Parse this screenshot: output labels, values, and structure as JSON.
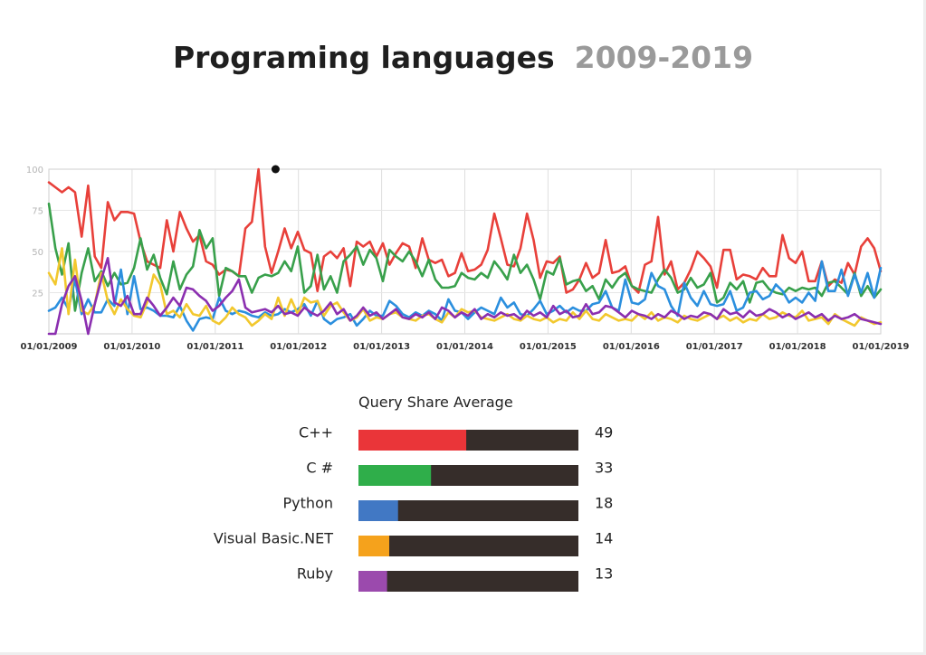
{
  "title": "Programing languages",
  "subtitle": "2009-2019",
  "chart_data": [
    {
      "type": "line",
      "title": "Programing languages",
      "xlabel": "",
      "ylabel": "",
      "ylim": [
        0,
        100
      ],
      "yticks": [
        "100",
        "75",
        "50",
        "25"
      ],
      "xticks": [
        "01/01/2009",
        "01/01/2010",
        "01/01/2011",
        "01/01/2012",
        "01/01/2013",
        "01/01/2014",
        "01/01/2015",
        "01/01/2016",
        "01/01/2017",
        "01/01/2018",
        "01/01/2019"
      ],
      "x_start": "01/01/2009",
      "x_end": "01/01/2019",
      "grid": true,
      "legend": "none",
      "peak_marker": {
        "x": "2011-09",
        "y": 100
      },
      "series": [
        {
          "key": "cpp",
          "color": "#e8403a",
          "values": [
            92,
            89,
            86,
            89,
            86,
            59,
            90,
            47,
            40,
            80,
            69,
            74,
            74,
            73,
            56,
            44,
            42,
            40,
            69,
            50,
            74,
            64,
            56,
            60,
            44,
            42,
            36,
            39,
            38,
            35,
            64,
            68,
            100,
            53,
            37,
            50,
            64,
            52,
            62,
            51,
            49,
            26,
            47,
            50,
            46,
            52,
            29,
            56,
            53,
            56,
            47,
            55,
            42,
            49,
            55,
            53,
            40,
            58,
            45,
            43,
            45,
            35,
            37,
            49,
            38,
            39,
            42,
            51,
            73,
            58,
            42,
            41,
            52,
            73,
            57,
            34,
            44,
            43,
            47,
            25,
            27,
            33,
            43,
            34,
            37,
            57,
            37,
            38,
            41,
            29,
            25,
            42,
            44,
            71,
            36,
            44,
            27,
            31,
            39,
            50,
            46,
            41,
            28,
            51,
            51,
            33,
            36,
            35,
            33,
            40,
            35,
            35,
            60,
            46,
            43,
            50,
            32,
            32,
            44,
            29,
            33,
            31,
            43,
            36,
            53,
            58,
            52,
            38
          ]
        },
        {
          "key": "csharp",
          "color": "#38a04b",
          "values": [
            79,
            52,
            36,
            55,
            14,
            37,
            52,
            32,
            38,
            29,
            37,
            30,
            31,
            40,
            58,
            39,
            48,
            34,
            24,
            44,
            27,
            36,
            41,
            63,
            52,
            58,
            23,
            40,
            38,
            35,
            35,
            25,
            34,
            36,
            35,
            37,
            44,
            38,
            53,
            25,
            29,
            48,
            27,
            35,
            25,
            44,
            48,
            53,
            42,
            51,
            46,
            32,
            51,
            47,
            44,
            50,
            44,
            35,
            45,
            33,
            28,
            28,
            29,
            37,
            34,
            33,
            37,
            34,
            44,
            39,
            33,
            48,
            37,
            42,
            33,
            21,
            38,
            36,
            46,
            30,
            32,
            33,
            26,
            29,
            21,
            33,
            28,
            34,
            37,
            29,
            27,
            26,
            25,
            33,
            39,
            34,
            25,
            27,
            34,
            28,
            30,
            37,
            19,
            22,
            31,
            27,
            32,
            19,
            31,
            32,
            27,
            25,
            24,
            28,
            26,
            28,
            27,
            28,
            23,
            31,
            32,
            28,
            24,
            37,
            23,
            29,
            22,
            27
          ]
        },
        {
          "key": "python",
          "color": "#2b8fde",
          "values": [
            14,
            16,
            22,
            15,
            33,
            12,
            21,
            13,
            13,
            21,
            17,
            39,
            12,
            35,
            15,
            16,
            14,
            11,
            11,
            10,
            17,
            8,
            2,
            9,
            10,
            9,
            22,
            14,
            12,
            14,
            13,
            11,
            10,
            13,
            11,
            12,
            15,
            13,
            15,
            18,
            11,
            20,
            9,
            6,
            9,
            10,
            12,
            5,
            9,
            14,
            11,
            11,
            20,
            17,
            12,
            10,
            13,
            11,
            14,
            12,
            8,
            21,
            14,
            13,
            9,
            13,
            16,
            14,
            12,
            22,
            16,
            19,
            12,
            11,
            15,
            20,
            12,
            14,
            17,
            13,
            16,
            14,
            14,
            18,
            19,
            26,
            16,
            14,
            33,
            19,
            18,
            21,
            37,
            29,
            27,
            17,
            11,
            31,
            22,
            17,
            26,
            18,
            17,
            18,
            26,
            14,
            16,
            25,
            26,
            21,
            23,
            30,
            26,
            19,
            22,
            19,
            25,
            20,
            44,
            26,
            26,
            39,
            23,
            36,
            25,
            37,
            22,
            40
          ]
        },
        {
          "key": "vbnet",
          "color": "#f2c82e",
          "values": [
            37,
            30,
            52,
            12,
            45,
            14,
            12,
            18,
            37,
            20,
            12,
            21,
            15,
            11,
            10,
            19,
            36,
            30,
            12,
            14,
            10,
            18,
            12,
            11,
            17,
            8,
            6,
            10,
            16,
            12,
            10,
            5,
            8,
            12,
            9,
            22,
            11,
            21,
            12,
            22,
            19,
            20,
            11,
            17,
            19,
            13,
            8,
            10,
            15,
            8,
            10,
            9,
            12,
            13,
            10,
            9,
            8,
            11,
            12,
            9,
            7,
            13,
            10,
            15,
            13,
            14,
            10,
            9,
            8,
            10,
            12,
            9,
            8,
            11,
            9,
            8,
            10,
            7,
            9,
            8,
            13,
            9,
            14,
            9,
            8,
            12,
            10,
            8,
            9,
            8,
            12,
            9,
            13,
            8,
            10,
            9,
            7,
            11,
            9,
            8,
            10,
            12,
            9,
            11,
            8,
            10,
            7,
            9,
            8,
            12,
            9,
            10,
            13,
            11,
            10,
            14,
            8,
            9,
            10,
            6,
            12,
            9,
            7,
            5,
            10,
            8,
            6,
            7
          ]
        },
        {
          "key": "ruby",
          "color": "#8b2fb0",
          "values": [
            0,
            0,
            18,
            29,
            35,
            20,
            0,
            18,
            33,
            46,
            19,
            17,
            23,
            12,
            12,
            22,
            17,
            11,
            16,
            22,
            17,
            28,
            27,
            23,
            20,
            14,
            17,
            22,
            26,
            33,
            16,
            13,
            14,
            15,
            13,
            17,
            12,
            13,
            11,
            16,
            13,
            11,
            14,
            19,
            12,
            15,
            8,
            11,
            16,
            11,
            13,
            9,
            12,
            15,
            10,
            9,
            12,
            10,
            13,
            9,
            16,
            14,
            10,
            13,
            11,
            15,
            9,
            12,
            10,
            13,
            11,
            12,
            9,
            14,
            11,
            13,
            10,
            17,
            12,
            14,
            10,
            11,
            18,
            12,
            13,
            17,
            16,
            13,
            10,
            14,
            12,
            11,
            9,
            12,
            10,
            14,
            12,
            9,
            11,
            10,
            13,
            12,
            9,
            15,
            12,
            13,
            10,
            14,
            11,
            12,
            15,
            13,
            10,
            12,
            9,
            11,
            13,
            10,
            12,
            8,
            11,
            9,
            10,
            12,
            9,
            8,
            7,
            6
          ]
        }
      ]
    },
    {
      "type": "bar",
      "title": "Query Share Average",
      "categories": [
        "C++",
        "C #",
        "Python",
        "Visual Basic.NET",
        "Ruby"
      ],
      "values": [
        49,
        33,
        18,
        14,
        13
      ],
      "colors": [
        "#ea3539",
        "#2fae4a",
        "#4178c4",
        "#f5a21c",
        "#9b4aad"
      ],
      "track_color": "#362d2a",
      "xlim": [
        0,
        100
      ]
    }
  ]
}
